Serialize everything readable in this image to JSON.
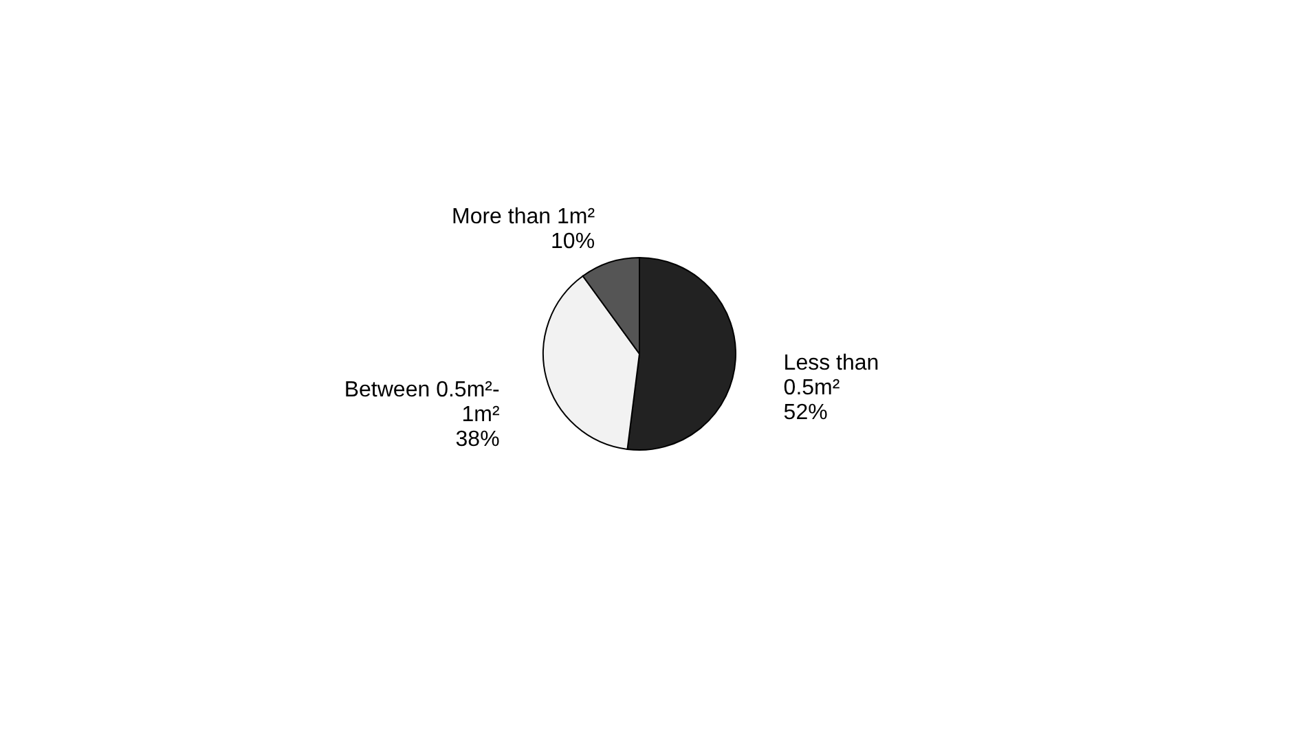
{
  "chart_data": {
    "type": "pie",
    "categories": [
      "Less than 0.5m²",
      "Between 0.5m²-1m²",
      "More than 1m²"
    ],
    "values": [
      52,
      38,
      10
    ],
    "colors": [
      "#222222",
      "#f2f2f2",
      "#555555"
    ],
    "value_labels": [
      "52%",
      "38%",
      "10%"
    ],
    "legend": false
  }
}
